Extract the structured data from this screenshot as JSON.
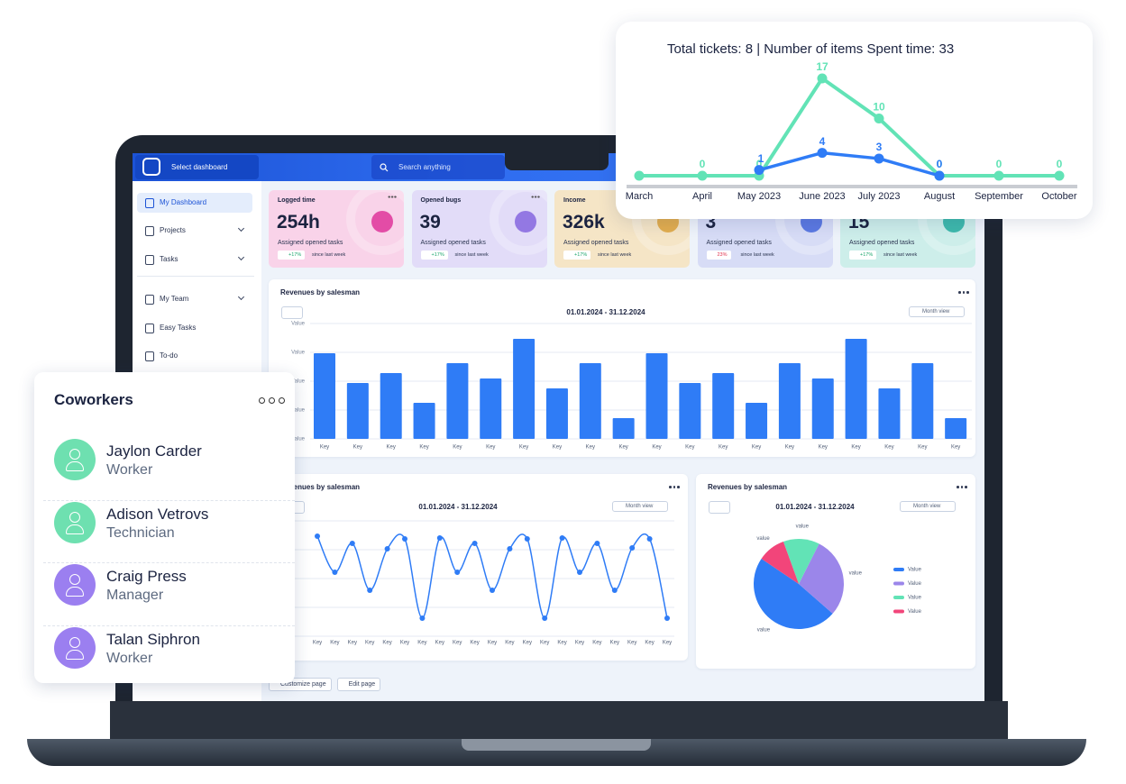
{
  "sidebar": {
    "select_dashboard": "Select dashboard",
    "items": [
      {
        "label": "My Dashboard",
        "active": true
      },
      {
        "label": "Projects",
        "expandable": true
      },
      {
        "label": "Tasks",
        "expandable": true
      },
      {
        "label": "My Team",
        "expandable": true
      },
      {
        "label": "Easy Tasks"
      },
      {
        "label": "To-do"
      }
    ]
  },
  "search": "Search anything",
  "cards": [
    {
      "label": "Logged time",
      "value": "254h",
      "subtitle": "Assigned opened tasks",
      "change": "+17%",
      "trend": "up",
      "since": "since last week",
      "color": "#f9d3e9",
      "icon_color": "#e03d9e"
    },
    {
      "label": "Opened bugs",
      "value": "39",
      "subtitle": "Assigned opened tasks",
      "change": "+17%",
      "trend": "up",
      "since": "since last week",
      "color": "#e2dcf8",
      "icon_color": "#8b6de0"
    },
    {
      "label": "Income",
      "value": "326k",
      "subtitle": "Assigned opened tasks",
      "change": "+17%",
      "trend": "up",
      "since": "since last week",
      "color": "#f5e5c6",
      "icon_color": "#e0a640"
    },
    {
      "value": "3",
      "subtitle": "Assigned opened tasks",
      "change": "23%",
      "trend": "down",
      "since": "since last week",
      "color": "#d7dcf6",
      "icon_color": "#4f6ee0"
    },
    {
      "value": "15",
      "subtitle": "Assigned opened tasks",
      "change": "+17%",
      "trend": "up",
      "since": "since last week",
      "color": "#cdeeea",
      "icon_color": "#2fb3a5"
    }
  ],
  "bar_chart": {
    "type": "bar",
    "title": "Revenues by salesman",
    "date_range": "01.01.2024 - 31.12.2024",
    "view": "Month view",
    "color": "#2f7cf6",
    "categories": [
      "Key",
      "Key",
      "Key",
      "Key",
      "Key",
      "Key",
      "Key",
      "Key",
      "Key",
      "Key",
      "Key",
      "Key",
      "Key",
      "Key",
      "Key",
      "Key",
      "Key",
      "Key",
      "Key",
      "Key"
    ],
    "values": [
      95,
      62,
      73,
      40,
      84,
      67,
      111,
      56,
      84,
      23,
      95,
      62,
      73,
      40,
      84,
      67,
      111,
      56,
      84,
      23
    ],
    "ylim": [
      0,
      130
    ],
    "yticks": [
      {
        "value": 0,
        "label": "Value"
      },
      {
        "value": 32,
        "label": "Value"
      },
      {
        "value": 64,
        "label": "Value"
      },
      {
        "value": 96,
        "label": "Value"
      },
      {
        "value": 128,
        "label": "Value"
      }
    ],
    "grid": true
  },
  "line_chart": {
    "type": "line",
    "title": "Revenues by salesman",
    "date_range": "01.01.2024 - 31.12.2024",
    "view": "Month view",
    "color": "#2f7cf6",
    "smooth": true,
    "categories": [
      "Key",
      "Key",
      "Key",
      "Key",
      "Key",
      "Key",
      "Key",
      "Key",
      "Key",
      "Key",
      "Key",
      "Key",
      "Key",
      "Key",
      "Key",
      "Key",
      "Key",
      "Key",
      "Key",
      "Key",
      "Key"
    ],
    "values": [
      111,
      71,
      103,
      51,
      97,
      108,
      20,
      109,
      71,
      103,
      51,
      97,
      108,
      20,
      109,
      71,
      103,
      51,
      98,
      108,
      20
    ],
    "ylim": [
      0,
      140
    ],
    "yticks": [
      0,
      32,
      64,
      96,
      128
    ],
    "grid": true
  },
  "pie_chart": {
    "type": "pie",
    "title": "Revenues by salesman",
    "date_range": "01.01.2024 - 31.12.2024",
    "view": "Month view",
    "series": [
      {
        "name": "Value",
        "color": "#2f7cf6",
        "value": 48,
        "label": "value"
      },
      {
        "name": "Value",
        "color": "#9b86ea",
        "value": 29,
        "label": "value"
      },
      {
        "name": "Value",
        "color": "#62e3b6",
        "value": 13,
        "label": "value"
      },
      {
        "name": "Value",
        "color": "#f2457a",
        "value": 10,
        "label": "value"
      }
    ]
  },
  "buttons": [
    "Customize page",
    "Edit page"
  ],
  "coworkers": {
    "title": "Coworkers",
    "people": [
      {
        "name": "Jaylon Carder",
        "role": "Worker",
        "color": "#6ee0b0"
      },
      {
        "name": "Adison Vetrovs",
        "role": "Technician",
        "color": "#6ee0b0"
      },
      {
        "name": "Craig Press",
        "role": "Manager",
        "color": "#9b7ff0"
      },
      {
        "name": "Talan Siphron",
        "role": "Worker",
        "color": "#9b7ff0"
      }
    ]
  },
  "tickets_chart": {
    "type": "line",
    "title": "Total tickets: 8 | Number of items Spent time: 33",
    "categories": [
      "March",
      "April",
      "May 2023",
      "June 2023",
      "July 2023",
      "August",
      "September",
      "October"
    ],
    "series": [
      {
        "color": "#62e3b6",
        "values": [
          0,
          0,
          0,
          17,
          10,
          0,
          0,
          0
        ]
      },
      {
        "color": "#2f7cf6",
        "values": [
          null,
          null,
          1,
          4,
          3,
          0,
          null,
          null
        ]
      }
    ],
    "ylim": [
      0,
      17
    ]
  }
}
